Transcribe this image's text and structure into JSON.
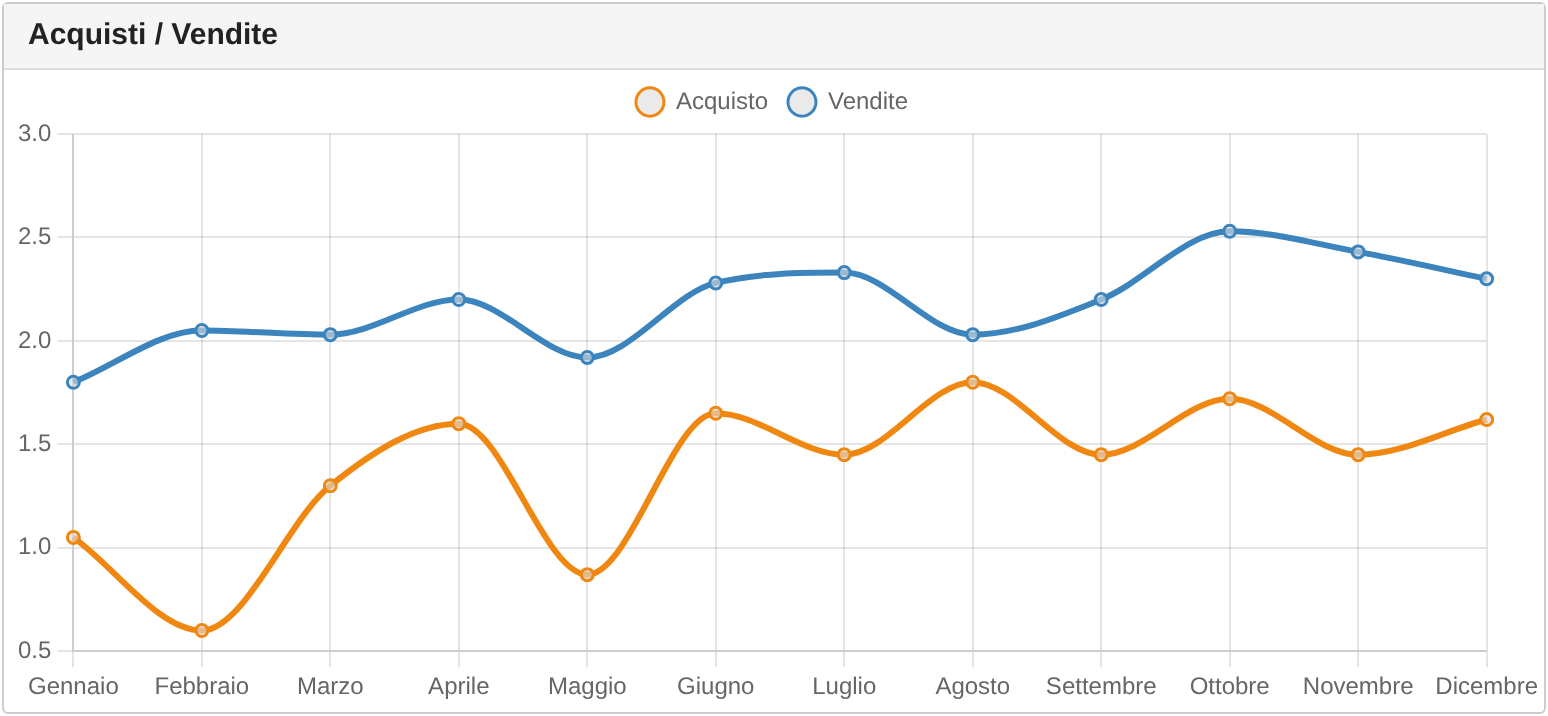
{
  "chart_data": {
    "type": "line",
    "title": "Acquisti / Vendite",
    "categories": [
      "Gennaio",
      "Febbraio",
      "Marzo",
      "Aprile",
      "Maggio",
      "Giugno",
      "Luglio",
      "Agosto",
      "Settembre",
      "Ottobre",
      "Novembre",
      "Dicembre"
    ],
    "series": [
      {
        "name": "Acquisto",
        "color": "#ef8711",
        "values": [
          1.05,
          0.6,
          1.3,
          1.6,
          0.87,
          1.65,
          1.45,
          1.8,
          1.45,
          1.72,
          1.45,
          1.62
        ]
      },
      {
        "name": "Vendite",
        "color": "#3b84bd",
        "values": [
          1.8,
          2.05,
          2.03,
          2.2,
          1.92,
          2.28,
          2.33,
          2.03,
          2.2,
          2.53,
          2.43,
          2.3
        ]
      }
    ],
    "ylim": [
      0.5,
      3.0
    ],
    "yticks": [
      {
        "value": 0.5,
        "label": "0.5"
      },
      {
        "value": 1,
        "label": "1.0"
      },
      {
        "value": 1.5,
        "label": "1.5"
      },
      {
        "value": 2,
        "label": "2.0"
      },
      {
        "value": 2.5,
        "label": "2.5"
      },
      {
        "value": 3,
        "label": "3.0"
      }
    ],
    "grid": true,
    "legend": "top",
    "marker": "circle",
    "line_style": "solid"
  }
}
